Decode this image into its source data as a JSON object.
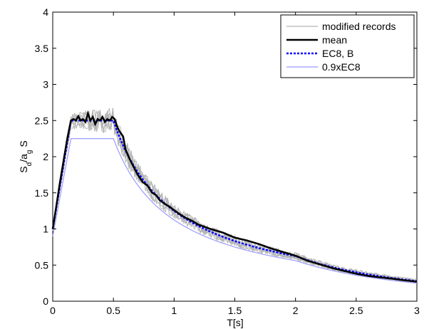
{
  "chart_data": {
    "type": "line",
    "title": "",
    "xlabel": "T[s]",
    "ylabel": "S_d/a_g S",
    "xlim": [
      0,
      3
    ],
    "ylim": [
      0,
      4
    ],
    "x_ticks": [
      0,
      0.5,
      1,
      1.5,
      2,
      2.5,
      3
    ],
    "x_tick_labels": [
      "0",
      "0.5",
      "1",
      "1.5",
      "2",
      "2.5",
      "3"
    ],
    "y_ticks": [
      0,
      0.5,
      1,
      1.5,
      2,
      2.5,
      3,
      3.5,
      4
    ],
    "y_tick_labels": [
      "0",
      "0.5",
      "1",
      "1.5",
      "2",
      "2.5",
      "3",
      "3.5",
      "4"
    ],
    "grid": false,
    "legend_position": "top-right",
    "legend": [
      {
        "label": "modified records",
        "color": "#b4b4b4",
        "style": "solid"
      },
      {
        "label": "mean",
        "color": "#000000",
        "style": "solid"
      },
      {
        "label": "EC8, B",
        "color": "#0000ff",
        "style": "dotted"
      },
      {
        "label": "0.9xEC8",
        "color": "#9a9aff",
        "style": "solid"
      }
    ],
    "series": [
      {
        "name": "EC8, B",
        "kind": "ec8",
        "params": {
          "ag": 1,
          "S": 1,
          "eta": 1,
          "TB": 0.15,
          "TC": 0.5,
          "TD": 2.0,
          "scale": 1.0
        },
        "color": "#0000ff",
        "style": "dotted"
      },
      {
        "name": "0.9xEC8",
        "kind": "ec8",
        "params": {
          "ag": 1,
          "S": 1,
          "eta": 1,
          "TB": 0.15,
          "TC": 0.5,
          "TD": 2.0,
          "scale": 0.9
        },
        "color": "#9a9aff",
        "style": "solid"
      },
      {
        "name": "mean",
        "kind": "points",
        "color": "#000000",
        "style": "solid",
        "x": [
          0,
          0.03,
          0.06,
          0.09,
          0.12,
          0.15,
          0.17,
          0.19,
          0.21,
          0.23,
          0.25,
          0.27,
          0.29,
          0.31,
          0.33,
          0.35,
          0.37,
          0.39,
          0.41,
          0.43,
          0.45,
          0.47,
          0.49,
          0.51,
          0.53,
          0.55,
          0.58,
          0.6,
          0.63,
          0.66,
          0.7,
          0.74,
          0.78,
          0.82,
          0.85,
          0.88,
          0.92,
          0.96,
          1.0,
          1.05,
          1.1,
          1.15,
          1.2,
          1.3,
          1.4,
          1.5,
          1.6,
          1.7,
          1.8,
          1.9,
          2.0,
          2.1,
          2.2,
          2.3,
          2.4,
          2.5,
          2.6,
          2.7,
          2.8,
          2.9,
          3.0
        ],
        "y": [
          1.0,
          1.32,
          1.65,
          1.95,
          2.25,
          2.5,
          2.52,
          2.5,
          2.56,
          2.5,
          2.52,
          2.48,
          2.6,
          2.5,
          2.55,
          2.45,
          2.52,
          2.5,
          2.55,
          2.48,
          2.52,
          2.5,
          2.55,
          2.52,
          2.42,
          2.35,
          2.28,
          2.1,
          1.98,
          1.88,
          1.75,
          1.65,
          1.6,
          1.5,
          1.47,
          1.4,
          1.35,
          1.31,
          1.26,
          1.2,
          1.15,
          1.11,
          1.06,
          1.0,
          0.95,
          0.88,
          0.84,
          0.79,
          0.73,
          0.68,
          0.63,
          0.56,
          0.51,
          0.46,
          0.42,
          0.38,
          0.35,
          0.33,
          0.31,
          0.29,
          0.27
        ]
      }
    ],
    "records": {
      "name": "modified records",
      "kind": "scatter-band",
      "color": "#b4b4b4",
      "count": 7,
      "amplitude": [
        {
          "x": 0.0,
          "amp": 0.03
        },
        {
          "x": 0.15,
          "amp": 0.12
        },
        {
          "x": 0.5,
          "amp": 0.18
        },
        {
          "x": 1.0,
          "amp": 0.1
        },
        {
          "x": 2.0,
          "amp": 0.05
        },
        {
          "x": 3.0,
          "amp": 0.03
        }
      ]
    }
  }
}
